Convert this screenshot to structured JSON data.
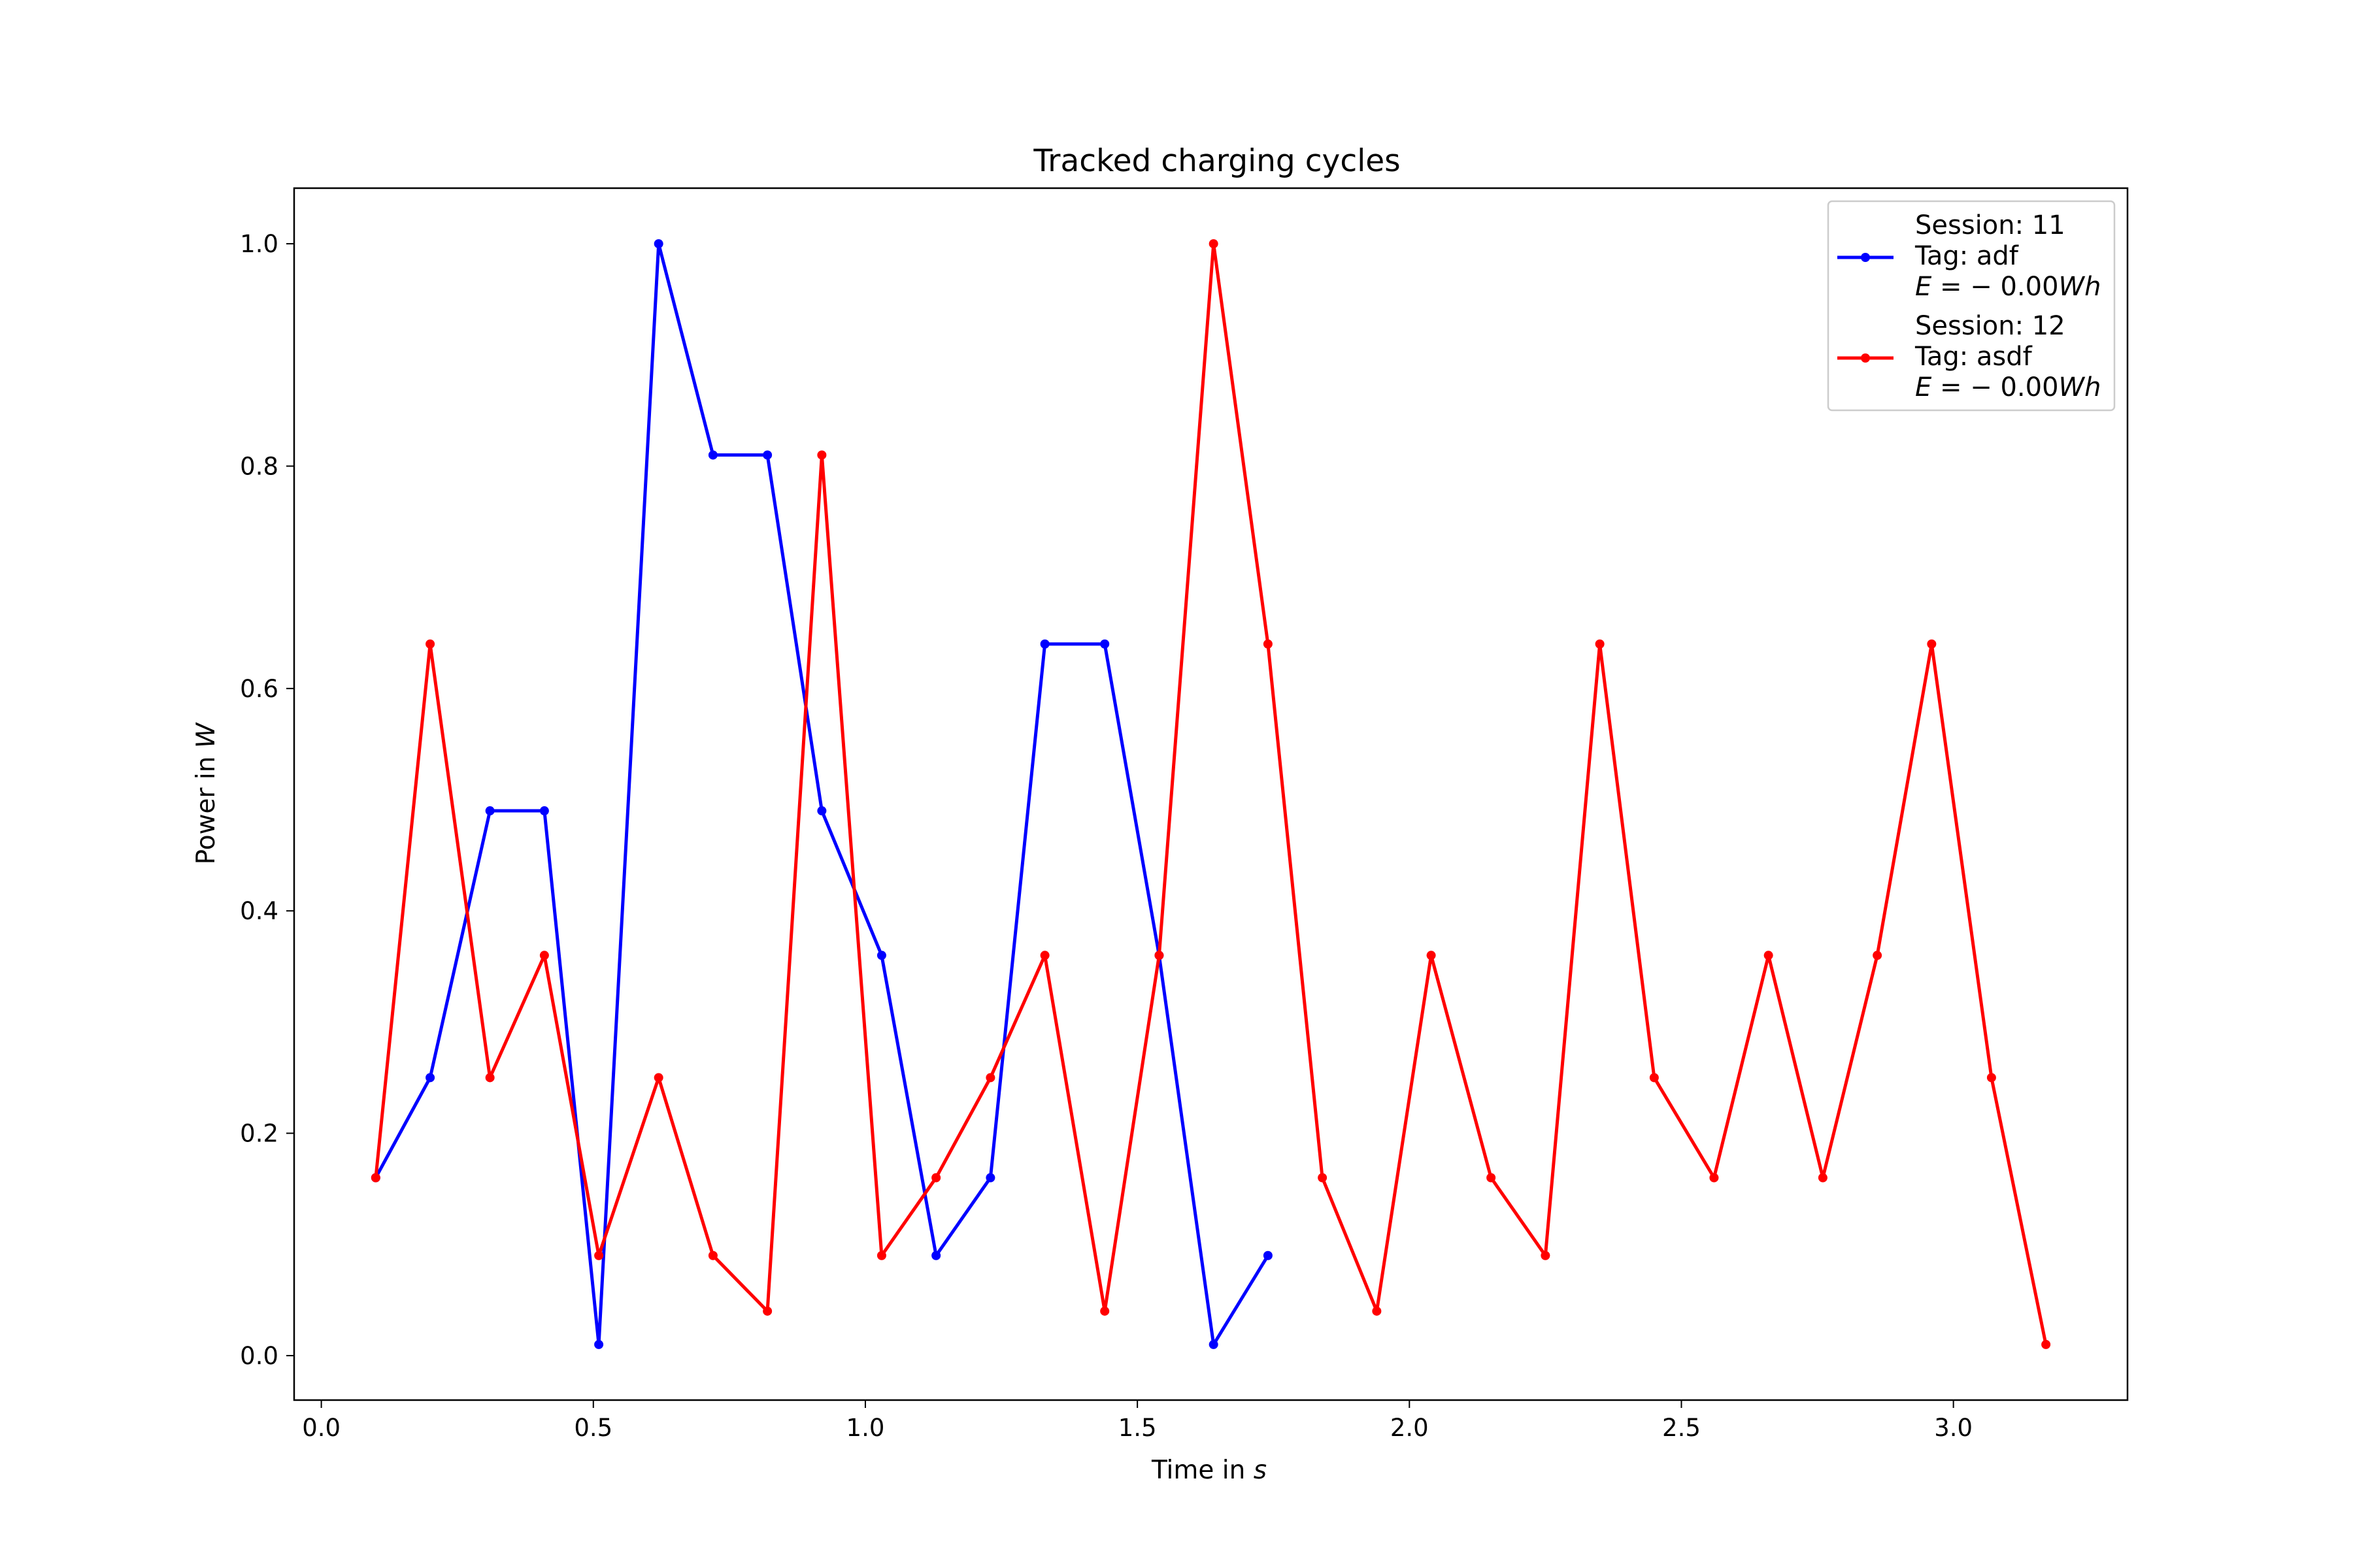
{
  "chart_data": {
    "type": "line",
    "title": "Tracked charging cycles",
    "xlabel": {
      "text": "Time in ",
      "unit": "s"
    },
    "ylabel": {
      "text": "Power in ",
      "unit": "W"
    },
    "xlim": [
      -0.05,
      3.32
    ],
    "ylim": [
      -0.04,
      1.05
    ],
    "xticks": [
      0.0,
      0.5,
      1.0,
      1.5,
      2.0,
      2.5,
      3.0
    ],
    "xtick_labels": [
      "0.0",
      "0.5",
      "1.0",
      "1.5",
      "2.0",
      "2.5",
      "3.0"
    ],
    "yticks": [
      0.0,
      0.2,
      0.4,
      0.6,
      0.8,
      1.0
    ],
    "ytick_labels": [
      "0.0",
      "0.2",
      "0.4",
      "0.6",
      "0.8",
      "1.0"
    ],
    "grid": false,
    "legend_position": "top-right",
    "series": [
      {
        "name": "Session: 11",
        "legend_lines": [
          "Session: 11",
          "Tag: adf"
        ],
        "energy_label": {
          "var": "E",
          "op": " = − 0.00",
          "unit": "Wh"
        },
        "color": "#0000ff",
        "x": [
          0.1,
          0.2,
          0.31,
          0.41,
          0.51,
          0.62,
          0.72,
          0.82,
          0.92,
          1.03,
          1.13,
          1.23,
          1.33,
          1.44,
          1.54,
          1.64,
          1.74
        ],
        "y": [
          0.16,
          0.25,
          0.49,
          0.49,
          0.01,
          1.0,
          0.81,
          0.81,
          0.49,
          0.36,
          0.09,
          0.16,
          0.64,
          0.64,
          0.36,
          0.01,
          0.09
        ]
      },
      {
        "name": "Session: 12",
        "legend_lines": [
          "Session: 12",
          "Tag: asdf"
        ],
        "energy_label": {
          "var": "E",
          "op": " = − 0.00",
          "unit": "Wh"
        },
        "color": "#ff0000",
        "x": [
          0.1,
          0.2,
          0.31,
          0.41,
          0.51,
          0.62,
          0.72,
          0.82,
          0.92,
          1.03,
          1.13,
          1.23,
          1.33,
          1.44,
          1.54,
          1.64,
          1.74,
          1.84,
          1.94,
          2.04,
          2.15,
          2.25,
          2.35,
          2.45,
          2.56,
          2.66,
          2.76,
          2.86,
          2.96,
          3.07,
          3.17
        ],
        "y": [
          0.16,
          0.64,
          0.25,
          0.36,
          0.09,
          0.25,
          0.09,
          0.04,
          0.81,
          0.09,
          0.16,
          0.25,
          0.36,
          0.04,
          0.36,
          1.0,
          0.64,
          0.16,
          0.04,
          0.36,
          0.16,
          0.09,
          0.64,
          0.25,
          0.16,
          0.36,
          0.16,
          0.36,
          0.64,
          0.25,
          0.01
        ]
      }
    ]
  }
}
